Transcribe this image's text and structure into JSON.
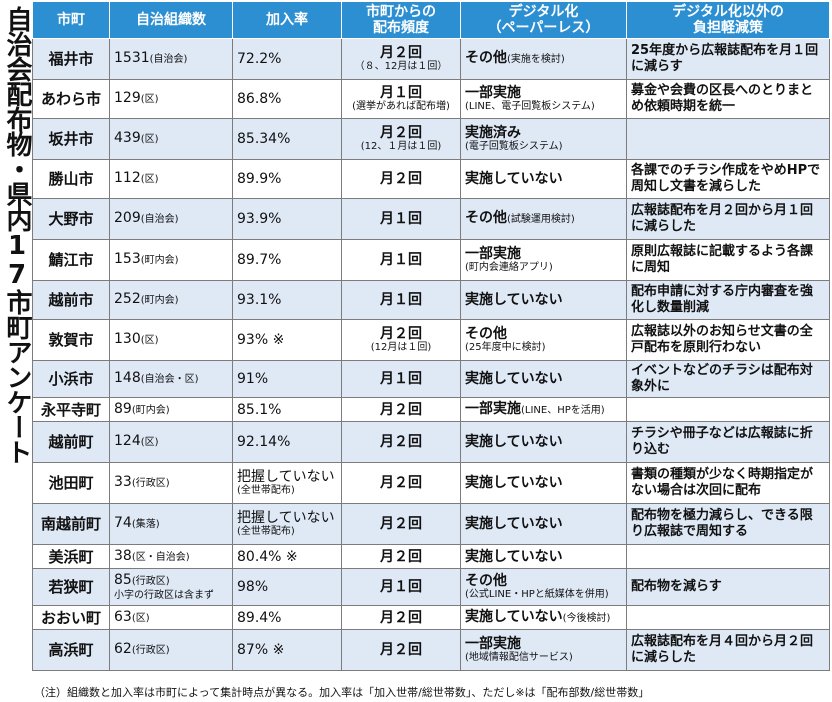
{
  "side_title": "自治会配布物・県内17市町アンケート",
  "headers": [
    "市町",
    "自治組織数",
    "加入率",
    "市町からの\n配布頻度",
    "デジタル化\n（ペーパーレス）",
    "デジタル化以外の\n負担軽減策"
  ],
  "rows": [
    {
      "city": "福井市",
      "orgs": "1531",
      "orgs_note": "(自治会)",
      "orgs_sub": "",
      "rate": "72.2%",
      "rate_sub": "",
      "freq": "月２回",
      "freq_sub": "（８、12月は１回）",
      "digital": "その他",
      "digital_note": "(実施を検討)",
      "digital_sub": "",
      "measure": "25年度から広報誌配布を月１回に減らす"
    },
    {
      "city": "あわら市",
      "orgs": "129",
      "orgs_note": "(区)",
      "orgs_sub": "",
      "rate": "86.8%",
      "rate_sub": "",
      "freq": "月１回",
      "freq_sub": "(選挙があれば配布増)",
      "digital": "一部実施",
      "digital_note": "",
      "digital_sub": "(LINE、電子回覧板システム)",
      "measure": "募金や会費の区長へのとりまとめ依頼時期を統一"
    },
    {
      "city": "坂井市",
      "orgs": "439",
      "orgs_note": "(区)",
      "orgs_sub": "",
      "rate": "85.34%",
      "rate_sub": "",
      "freq": "月２回",
      "freq_sub": "(12、１月は１回)",
      "digital": "実施済み",
      "digital_note": "",
      "digital_sub": "(電子回覧板システム)",
      "measure": ""
    },
    {
      "city": "勝山市",
      "orgs": "112",
      "orgs_note": "(区)",
      "orgs_sub": "",
      "rate": "89.9%",
      "rate_sub": "",
      "freq": "月２回",
      "freq_sub": "",
      "digital": "実施していない",
      "digital_note": "",
      "digital_sub": "",
      "measure": "各課でのチラシ作成をやめHPで周知し文書を減らした"
    },
    {
      "city": "大野市",
      "orgs": "209",
      "orgs_note": "(自治会)",
      "orgs_sub": "",
      "rate": "93.9%",
      "rate_sub": "",
      "freq": "月１回",
      "freq_sub": "",
      "digital": "その他",
      "digital_note": "(試験運用検討)",
      "digital_sub": "",
      "measure": "広報誌配布を月２回から月１回に減らした"
    },
    {
      "city": "鯖江市",
      "orgs": "153",
      "orgs_note": "(町内会)",
      "orgs_sub": "",
      "rate": "89.7%",
      "rate_sub": "",
      "freq": "月１回",
      "freq_sub": "",
      "digital": "一部実施",
      "digital_note": "",
      "digital_sub": "(町内会連絡アプリ)",
      "measure": "原則広報誌に記載するよう各課に周知"
    },
    {
      "city": "越前市",
      "orgs": "252",
      "orgs_note": "(町内会)",
      "orgs_sub": "",
      "rate": "93.1%",
      "rate_sub": "",
      "freq": "月１回",
      "freq_sub": "",
      "digital": "実施していない",
      "digital_note": "",
      "digital_sub": "",
      "measure": "配布申請に対する庁内審査を強化し数量削減"
    },
    {
      "city": "敦賀市",
      "orgs": "130",
      "orgs_note": "(区)",
      "orgs_sub": "",
      "rate": "93% ※",
      "rate_sub": "",
      "freq": "月２回",
      "freq_sub": "(12月は１回)",
      "digital": "その他",
      "digital_note": "",
      "digital_sub": "(25年度中に検討)",
      "measure": "広報誌以外のお知らせ文書の全戸配布を原則行わない"
    },
    {
      "city": "小浜市",
      "orgs": "148",
      "orgs_note": "(自治会・区)",
      "orgs_sub": "",
      "rate": "91%",
      "rate_sub": "",
      "freq": "月１回",
      "freq_sub": "",
      "digital": "実施していない",
      "digital_note": "",
      "digital_sub": "",
      "measure": "イベントなどのチラシは配布対象外に"
    },
    {
      "city": "永平寺町",
      "orgs": "89",
      "orgs_note": "(町内会)",
      "orgs_sub": "",
      "rate": "85.1%",
      "rate_sub": "",
      "freq": "月２回",
      "freq_sub": "",
      "digital": "一部実施",
      "digital_note": "(LINE、HPを活用)",
      "digital_sub": "",
      "measure": ""
    },
    {
      "city": "越前町",
      "orgs": "124",
      "orgs_note": "(区)",
      "orgs_sub": "",
      "rate": "92.14%",
      "rate_sub": "",
      "freq": "月２回",
      "freq_sub": "",
      "digital": "実施していない",
      "digital_note": "",
      "digital_sub": "",
      "measure": "チラシや冊子などは広報誌に折り込む"
    },
    {
      "city": "池田町",
      "orgs": "33",
      "orgs_note": "(行政区)",
      "orgs_sub": "",
      "rate": "把握していない",
      "rate_sub": "(全世帯配布)",
      "freq": "月２回",
      "freq_sub": "",
      "digital": "実施していない",
      "digital_note": "",
      "digital_sub": "",
      "measure": "書類の種類が少なく時期指定がない場合は次回に配布"
    },
    {
      "city": "南越前町",
      "orgs": "74",
      "orgs_note": "(集落)",
      "orgs_sub": "",
      "rate": "把握していない",
      "rate_sub": "(全世帯配布)",
      "freq": "月２回",
      "freq_sub": "",
      "digital": "実施していない",
      "digital_note": "",
      "digital_sub": "",
      "measure": "配布物を極力減らし、できる限り広報誌で周知する"
    },
    {
      "city": "美浜町",
      "orgs": "38",
      "orgs_note": "(区・自治会)",
      "orgs_sub": "",
      "rate": "80.4% ※",
      "rate_sub": "",
      "freq": "月２回",
      "freq_sub": "",
      "digital": "実施していない",
      "digital_note": "",
      "digital_sub": "",
      "measure": ""
    },
    {
      "city": "若狭町",
      "orgs": "85",
      "orgs_note": "(行政区)",
      "orgs_sub": "小字の行政区は含まず",
      "rate": "98%",
      "rate_sub": "",
      "freq": "月１回",
      "freq_sub": "",
      "digital": "その他",
      "digital_note": "",
      "digital_sub": "(公式LINE・HPと紙媒体を併用)",
      "measure": "配布物を減らす"
    },
    {
      "city": "おおい町",
      "orgs": "63",
      "orgs_note": "(区)",
      "orgs_sub": "",
      "rate": "89.4%",
      "rate_sub": "",
      "freq": "月２回",
      "freq_sub": "",
      "digital": "実施していない",
      "digital_note": "(今後検討)",
      "digital_sub": "",
      "measure": ""
    },
    {
      "city": "高浜町",
      "orgs": "62",
      "orgs_note": "(行政区)",
      "orgs_sub": "",
      "rate": "87% ※",
      "rate_sub": "",
      "freq": "月２回",
      "freq_sub": "",
      "digital": "一部実施",
      "digital_note": "",
      "digital_sub": "(地域情報配信サービス)",
      "measure": "広報誌配布を月４回から月２回に減らした"
    }
  ],
  "footnote": "（注）組織数と加入率は市町によって集計時点が異なる。加入率は「加入世帯/総世帯数」、ただし※は「配布部数/総世帯数」"
}
